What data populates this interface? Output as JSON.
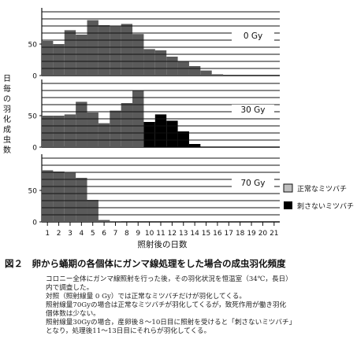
{
  "chart_data": [
    {
      "type": "bar",
      "panel_label": "0 Gy",
      "x": [
        1,
        2,
        3,
        4,
        5,
        6,
        7,
        8,
        9,
        10,
        11,
        12,
        13,
        14,
        15,
        16,
        17,
        18,
        19,
        20,
        21
      ],
      "ylim": [
        0,
        100
      ],
      "yticks": [
        0,
        50
      ],
      "series": [
        {
          "name": "正常なミツバチ",
          "values": [
            55,
            50,
            72,
            65,
            88,
            80,
            78,
            82,
            66,
            42,
            40,
            30,
            22,
            15,
            8,
            2,
            0,
            0,
            0,
            0,
            0
          ]
        }
      ]
    },
    {
      "type": "bar",
      "panel_label": "30 Gy",
      "x": [
        1,
        2,
        3,
        4,
        5,
        6,
        7,
        8,
        9,
        10,
        11,
        12,
        13,
        14,
        15,
        16,
        17,
        18,
        19,
        20,
        21
      ],
      "ylim": [
        0,
        100
      ],
      "yticks": [
        0,
        50
      ],
      "stacked": true,
      "series": [
        {
          "name": "正常なミツバチ",
          "values": [
            50,
            50,
            52,
            72,
            55,
            38,
            58,
            70,
            90,
            0,
            0,
            0,
            0,
            0,
            0,
            0,
            0,
            0,
            0,
            0,
            0
          ]
        },
        {
          "name": "刺さないミツバチ",
          "values": [
            0,
            0,
            0,
            0,
            0,
            0,
            0,
            0,
            0,
            40,
            52,
            42,
            25,
            5,
            0,
            0,
            0,
            0,
            0,
            0,
            0
          ]
        }
      ]
    },
    {
      "type": "bar",
      "panel_label": "70 Gy",
      "x": [
        1,
        2,
        3,
        4,
        5,
        6,
        7,
        8,
        9,
        10,
        11,
        12,
        13,
        14,
        15,
        16,
        17,
        18,
        19,
        20,
        21
      ],
      "ylim": [
        0,
        100
      ],
      "yticks": [
        0,
        50
      ],
      "series": [
        {
          "name": "正常なミツバチ",
          "values": [
            82,
            80,
            78,
            70,
            35,
            3,
            1,
            0,
            0,
            0,
            0,
            0,
            0,
            0,
            0,
            0,
            0,
            0,
            0,
            0,
            0
          ]
        }
      ]
    }
  ],
  "axes": {
    "xlabel": "照射後の日数",
    "ylabel": "日毎の羽化成虫数",
    "xticks": [
      "1",
      "2",
      "3",
      "4",
      "5",
      "6",
      "7",
      "8",
      "9",
      "10",
      "11",
      "12",
      "13",
      "14",
      "15",
      "16",
      "17",
      "18",
      "19",
      "20",
      "21"
    ]
  },
  "legend": {
    "normal": "正常なミツバチ",
    "stingless": "刺さないミツバチ"
  },
  "colors": {
    "normal": "#5a5a5a",
    "stingless": "#000000",
    "lines": "#111111"
  },
  "caption": {
    "title": "図２　卵から蛹期の各個体にガンマ線処理をした場合の成虫羽化頻度",
    "lines": [
      "コロニー全体にガンマ線照射を行った後，その羽化状況を恒温室（34℃，長日）",
      "内で調査した。",
      "対照（照射線量 0 Gy）では正常なミツバチだけが羽化してくる。",
      "照射線量70Gyの場合は正常なミツバチが羽化してくるが，致死作用が働き羽化",
      "個体数は少ない。",
      "照射線量30Gyの場合，産卵後８～10日目に照射を受けると「刺さないミツバチ」",
      "となり，処理後11～13日目にそれらが羽化してくる。"
    ]
  }
}
